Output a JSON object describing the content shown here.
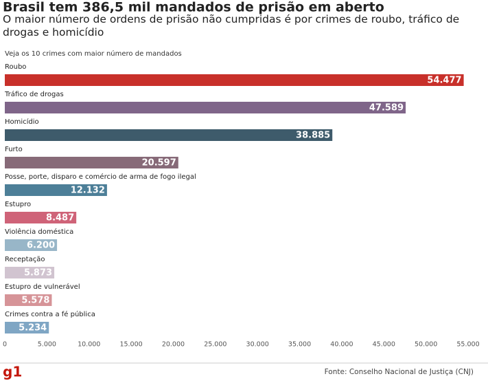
{
  "chart_data": {
    "type": "hbar",
    "title": "Brasil tem 386,5 mil mandados de prisão em aberto",
    "subtitle": "O maior número de ordens de prisão não cumpridas é por crimes de roubo, tráfico de drogas e homicídio",
    "note": "Veja os 10 crimes com maior número de mandados",
    "categories": [
      "Roubo",
      "Tráfico de drogas",
      "Homicídio",
      "Furto",
      "Posse, porte, disparo e comércio de arma de fogo ilegal",
      "Estupro",
      "Violência doméstica",
      "Receptação",
      "Estupro de vulnerável",
      "Crimes contra a fé pública"
    ],
    "values": [
      54477,
      47589,
      38885,
      20597,
      12132,
      8487,
      6200,
      5873,
      5578,
      5234
    ],
    "value_labels": [
      "54.477",
      "47.589",
      "38.885",
      "20.597",
      "12.132",
      "8.487",
      "6.200",
      "5.873",
      "5.578",
      "5.234"
    ],
    "colors": [
      "#c8302a",
      "#7f6589",
      "#3e5b6b",
      "#876a78",
      "#4d7f98",
      "#cf6378",
      "#98b6c8",
      "#d1c4d0",
      "#d69498",
      "#7fa6c4"
    ],
    "xlim": [
      0,
      55000
    ],
    "xticks": [
      0,
      {
        "value": 5000,
        "label": "5.000"
      },
      {
        "value": 10000,
        "label": "10.000"
      },
      {
        "value": 15000,
        "label": "15.000"
      },
      {
        "value": 20000,
        "label": "20.000"
      },
      {
        "value": 25000,
        "label": "25.000"
      },
      {
        "value": 30000,
        "label": "30.000"
      },
      {
        "value": 35000,
        "label": "35.000"
      },
      {
        "value": 40000,
        "label": "40.000"
      },
      {
        "value": 45000,
        "label": "45.000"
      },
      {
        "value": 50000,
        "label": "50.000"
      },
      {
        "value": 55000,
        "label": "55.000"
      }
    ],
    "logo": "g1",
    "source": "Fonte: Conselho Nacional de Justiça (CNJ)"
  }
}
